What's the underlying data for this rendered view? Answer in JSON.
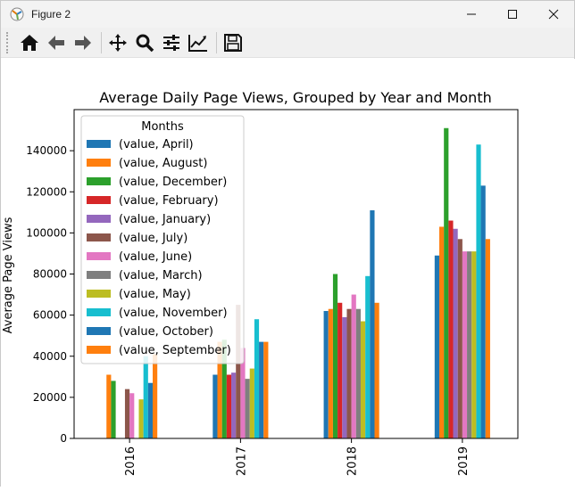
{
  "window": {
    "title": "Figure 2"
  },
  "toolbar": {
    "buttons": [
      "home-icon",
      "back-icon",
      "forward-icon",
      "pan-icon",
      "zoom-icon",
      "configure-subplots-icon",
      "edit-axis-icon",
      "save-icon"
    ]
  },
  "colors": {
    "series": [
      "#1f77b4",
      "#ff7f0e",
      "#2ca02c",
      "#d62728",
      "#9467bd",
      "#8c564b",
      "#e377c2",
      "#7f7f7f",
      "#bcbd22",
      "#17becf",
      "#1f77b4",
      "#ff7f0e"
    ]
  },
  "chart_data": {
    "type": "bar",
    "title": "Average Daily Page Views, Grouped by Year and Month",
    "xlabel": "",
    "ylabel": "Average Page Views",
    "categories": [
      "2016",
      "2017",
      "2018",
      "2019"
    ],
    "ylim": [
      0,
      160000
    ],
    "yticks": [
      0,
      20000,
      40000,
      60000,
      80000,
      100000,
      120000,
      140000
    ],
    "ytick_labels": [
      "0",
      "20000",
      "40000",
      "60000",
      "80000",
      "100000",
      "120000",
      "140000"
    ],
    "legend": {
      "title": "Months",
      "placement": "top-left"
    },
    "series": [
      {
        "name": "(value, April)",
        "values": [
          null,
          31000,
          62000,
          89000
        ]
      },
      {
        "name": "(value, August)",
        "values": [
          31000,
          47000,
          63000,
          103000
        ]
      },
      {
        "name": "(value, December)",
        "values": [
          28000,
          48000,
          80000,
          151000
        ]
      },
      {
        "name": "(value, February)",
        "values": [
          null,
          31000,
          66000,
          106000
        ]
      },
      {
        "name": "(value, January)",
        "values": [
          null,
          32000,
          59000,
          102000
        ]
      },
      {
        "name": "(value, July)",
        "values": [
          24000,
          65000,
          63000,
          97000
        ]
      },
      {
        "name": "(value, June)",
        "values": [
          22000,
          44000,
          70000,
          91000
        ]
      },
      {
        "name": "(value, March)",
        "values": [
          null,
          29000,
          63000,
          91000
        ]
      },
      {
        "name": "(value, May)",
        "values": [
          19000,
          34000,
          57000,
          91000
        ]
      },
      {
        "name": "(value, November)",
        "values": [
          40000,
          58000,
          79000,
          143000
        ]
      },
      {
        "name": "(value, October)",
        "values": [
          27000,
          47000,
          111000,
          123000
        ]
      },
      {
        "name": "(value, September)",
        "values": [
          41000,
          47000,
          66000,
          97000
        ]
      }
    ]
  }
}
